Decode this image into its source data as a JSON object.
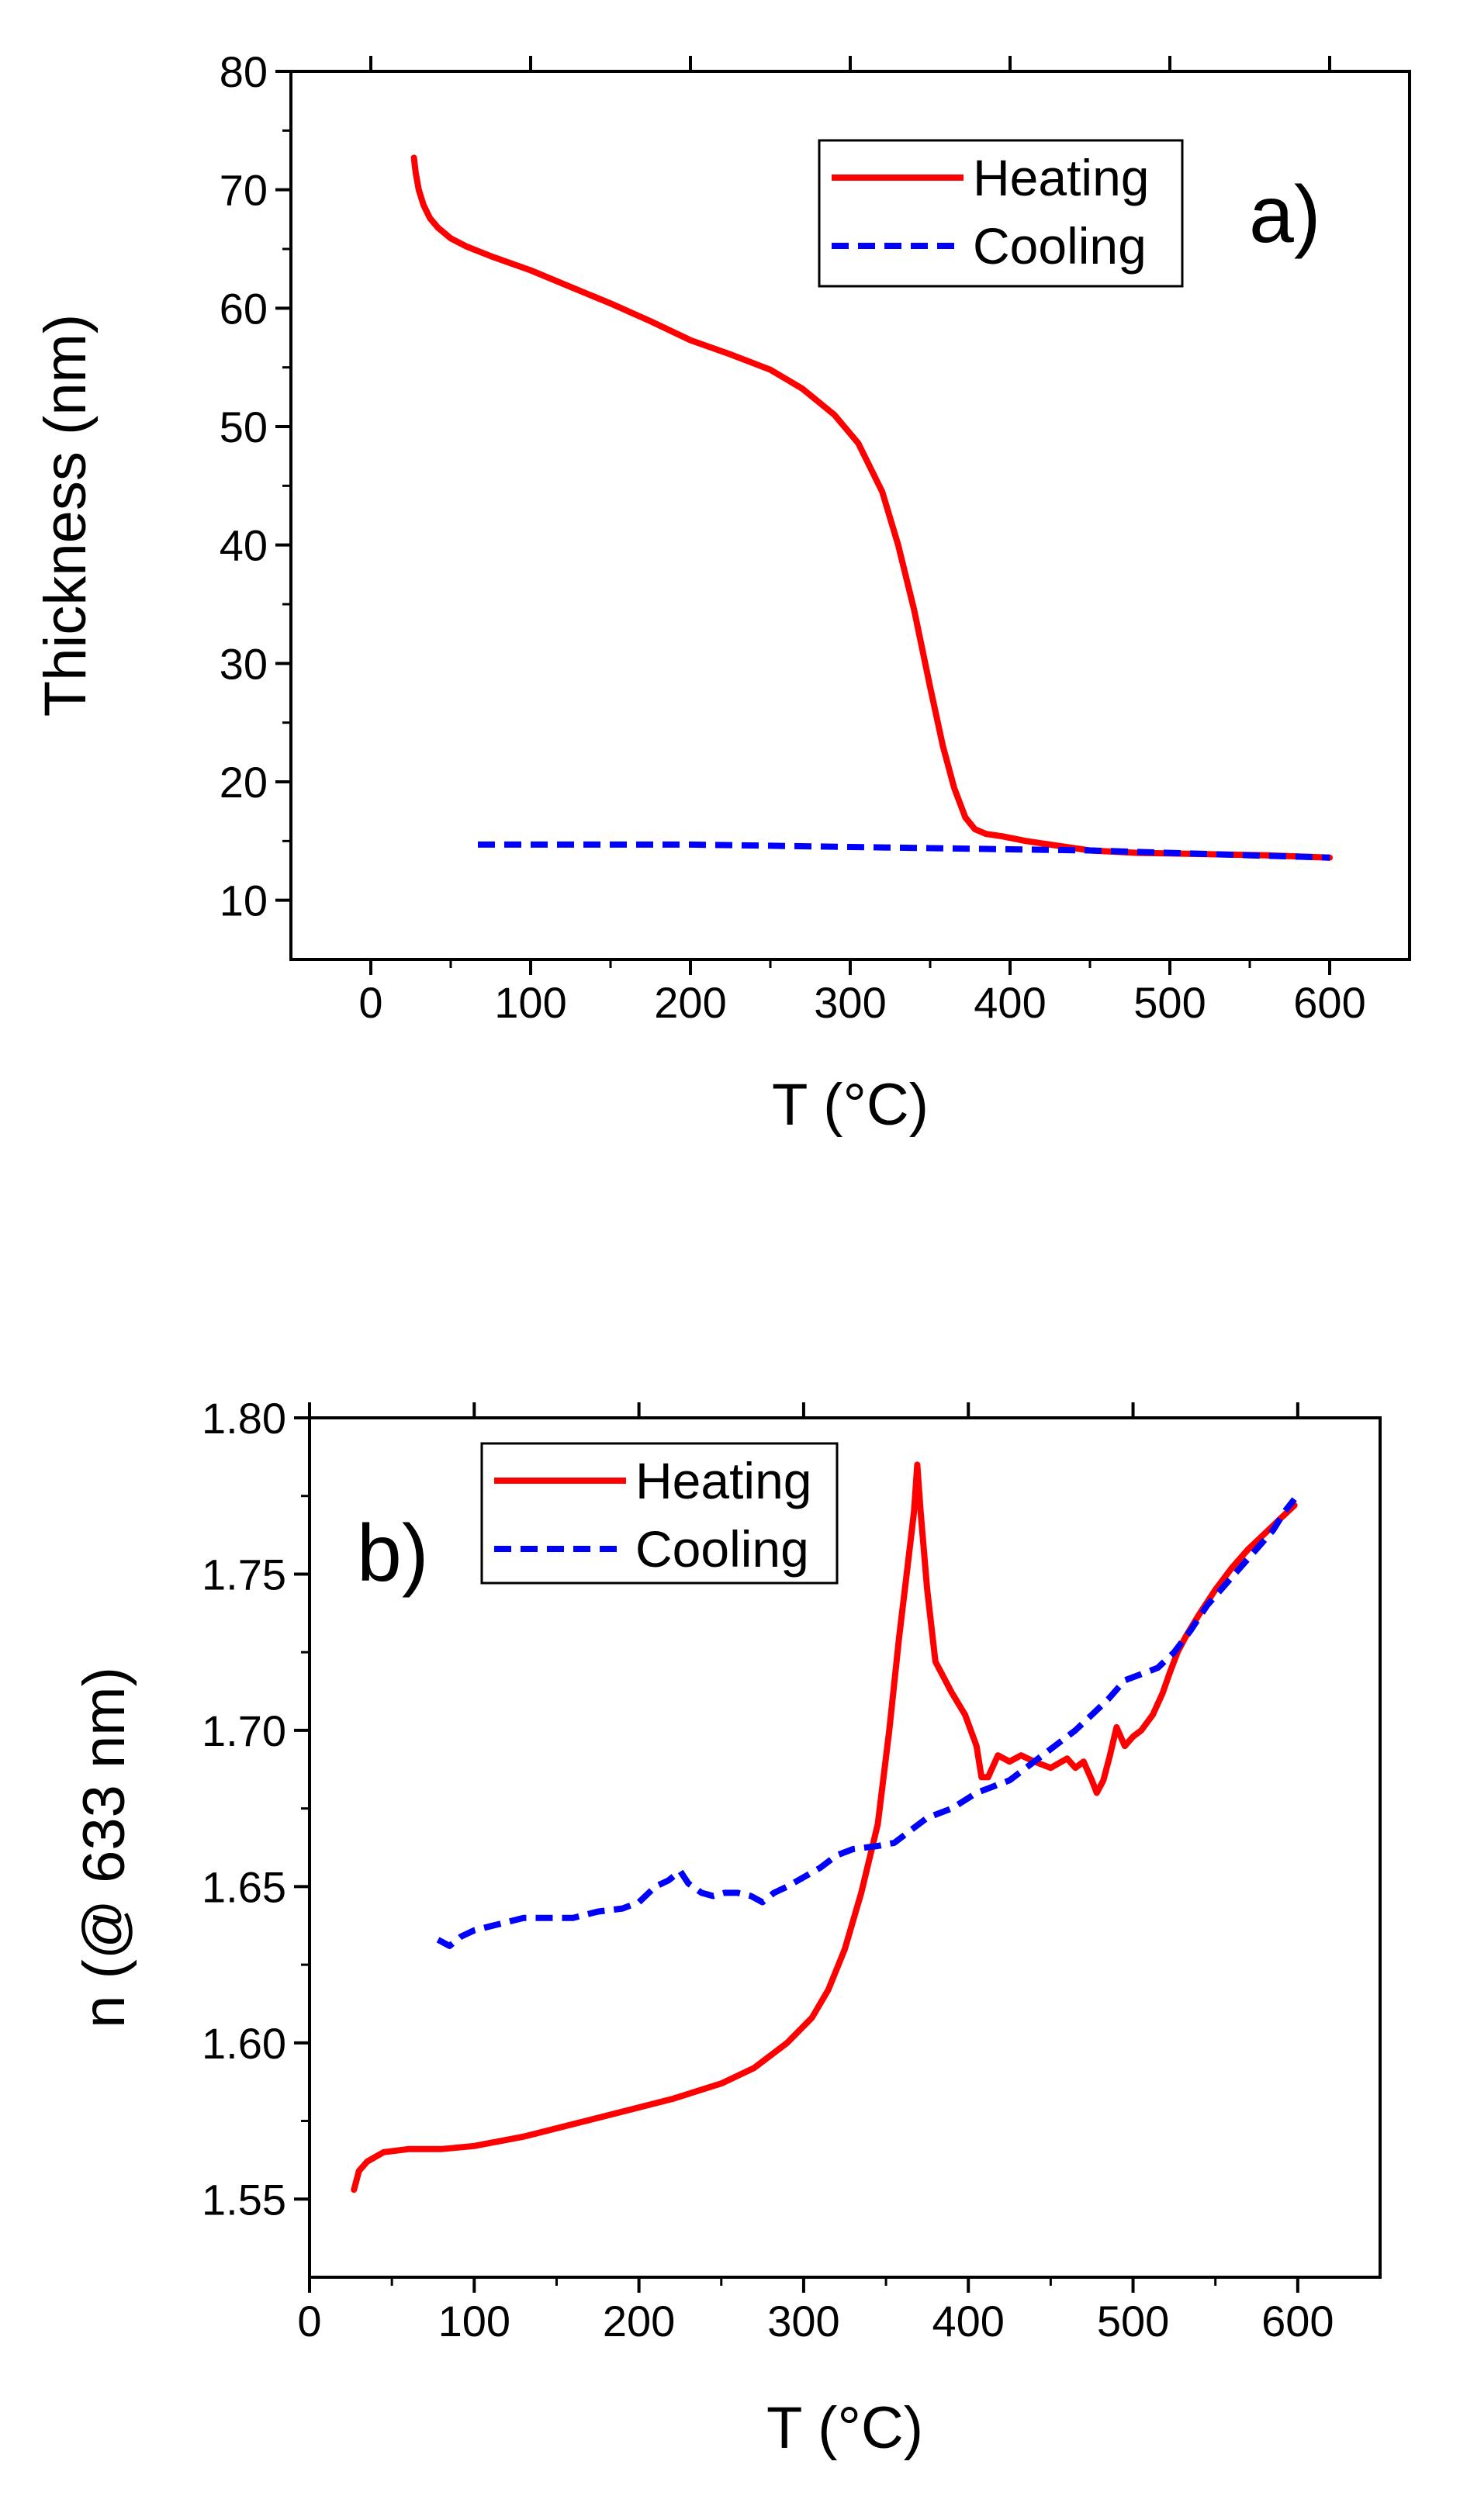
{
  "chart_data": [
    {
      "type": "line",
      "panel_label": "a)",
      "xlabel": "T (°C)",
      "ylabel": "Thickness (nm)",
      "xlim": [
        -50,
        650
      ],
      "ylim": [
        5,
        80
      ],
      "xticks": [
        0,
        100,
        200,
        300,
        400,
        500,
        600
      ],
      "yticks": [
        10,
        20,
        30,
        40,
        50,
        60,
        70,
        80
      ],
      "legend_position": "top-right",
      "series": [
        {
          "name": "Heating",
          "color": "#ff0000",
          "style": "solid",
          "x": [
            27,
            28,
            30,
            33,
            37,
            42,
            50,
            60,
            75,
            100,
            125,
            150,
            175,
            200,
            225,
            250,
            270,
            290,
            305,
            320,
            330,
            340,
            350,
            358,
            365,
            372,
            378,
            385,
            395,
            410,
            430,
            450,
            480,
            520,
            560,
            600
          ],
          "y": [
            72.7,
            71.5,
            70.0,
            68.7,
            67.6,
            66.8,
            65.9,
            65.2,
            64.4,
            63.2,
            61.8,
            60.4,
            58.9,
            57.3,
            56.1,
            54.8,
            53.2,
            51.0,
            48.6,
            44.5,
            40.0,
            34.5,
            28.0,
            23.0,
            19.5,
            17.0,
            16.0,
            15.6,
            15.4,
            15.0,
            14.6,
            14.2,
            14.0,
            13.9,
            13.8,
            13.6
          ]
        },
        {
          "name": "Cooling",
          "color": "#0000ff",
          "style": "dashed",
          "x": [
            67,
            100,
            150,
            200,
            250,
            300,
            350,
            400,
            450,
            500,
            550,
            600
          ],
          "y": [
            14.7,
            14.7,
            14.7,
            14.7,
            14.6,
            14.5,
            14.4,
            14.3,
            14.2,
            14.0,
            13.8,
            13.6
          ]
        }
      ]
    },
    {
      "type": "line",
      "panel_label": "b)",
      "xlabel": "T (°C)",
      "ylabel": "n (@ 633 nm)",
      "xlim": [
        0,
        650
      ],
      "ylim": [
        1.525,
        1.8
      ],
      "xticks": [
        0,
        100,
        200,
        300,
        400,
        500,
        600
      ],
      "yticks": [
        1.55,
        1.6,
        1.65,
        1.7,
        1.75,
        1.8
      ],
      "ytick_labels": [
        "1.55",
        "1.60",
        "1.65",
        "1.70",
        "1.75",
        "1.80"
      ],
      "legend_position": "top-left",
      "series": [
        {
          "name": "Heating",
          "color": "#ff0000",
          "style": "solid",
          "x": [
            27,
            30,
            35,
            45,
            60,
            80,
            100,
            130,
            160,
            190,
            220,
            250,
            270,
            290,
            305,
            315,
            325,
            335,
            345,
            352,
            358,
            363,
            367,
            369,
            371,
            375,
            380,
            390,
            398,
            405,
            408,
            412,
            418,
            425,
            432,
            440,
            450,
            460,
            465,
            470,
            475,
            478,
            482,
            486,
            490,
            495,
            500,
            505,
            512,
            518,
            522,
            527,
            532,
            540,
            550,
            560,
            570,
            580,
            590,
            598
          ],
          "y": [
            1.553,
            1.559,
            1.562,
            1.565,
            1.566,
            1.566,
            1.567,
            1.57,
            1.574,
            1.578,
            1.582,
            1.587,
            1.592,
            1.6,
            1.608,
            1.617,
            1.63,
            1.648,
            1.67,
            1.7,
            1.73,
            1.752,
            1.77,
            1.785,
            1.77,
            1.745,
            1.722,
            1.712,
            1.705,
            1.695,
            1.685,
            1.685,
            1.692,
            1.69,
            1.692,
            1.69,
            1.688,
            1.691,
            1.688,
            1.69,
            1.684,
            1.68,
            1.684,
            1.692,
            1.701,
            1.695,
            1.698,
            1.7,
            1.705,
            1.712,
            1.718,
            1.725,
            1.73,
            1.737,
            1.745,
            1.752,
            1.758,
            1.763,
            1.768,
            1.772
          ]
        },
        {
          "name": "Cooling",
          "color": "#0000ff",
          "style": "dashed",
          "x": [
            78,
            85,
            92,
            100,
            115,
            130,
            145,
            160,
            175,
            190,
            200,
            210,
            218,
            225,
            230,
            238,
            245,
            252,
            260,
            268,
            275,
            282,
            290,
            300,
            310,
            320,
            330,
            345,
            355,
            365,
            375,
            390,
            405,
            415,
            425,
            435,
            445,
            455,
            465,
            475,
            485,
            495,
            505,
            515,
            525,
            535,
            545,
            555,
            565,
            575,
            585,
            592,
            598
          ],
          "y": [
            1.633,
            1.631,
            1.634,
            1.636,
            1.638,
            1.64,
            1.64,
            1.64,
            1.642,
            1.643,
            1.645,
            1.65,
            1.652,
            1.655,
            1.651,
            1.648,
            1.647,
            1.648,
            1.648,
            1.647,
            1.645,
            1.648,
            1.65,
            1.653,
            1.656,
            1.66,
            1.662,
            1.663,
            1.664,
            1.668,
            1.672,
            1.675,
            1.68,
            1.682,
            1.684,
            1.688,
            1.692,
            1.696,
            1.7,
            1.705,
            1.71,
            1.716,
            1.718,
            1.72,
            1.725,
            1.732,
            1.74,
            1.746,
            1.752,
            1.758,
            1.764,
            1.77,
            1.774
          ]
        }
      ]
    }
  ]
}
